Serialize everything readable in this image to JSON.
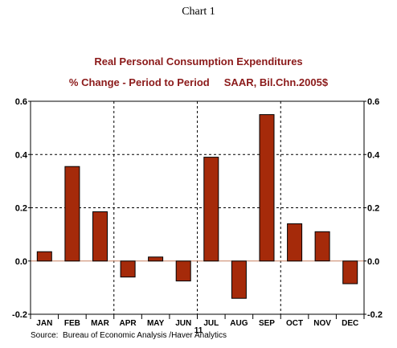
{
  "caption": "Chart 1",
  "source": "Source:  Bureau of Economic Analysis /Haver Analytics",
  "chart_data": {
    "type": "bar",
    "title": "Real Personal Consumption Expenditures",
    "subtitle": "% Change - Period to Period     SAAR, Bil.Chn.2005$",
    "categories": [
      "JAN",
      "FEB",
      "MAR",
      "APR",
      "MAY",
      "JUN",
      "JUL",
      "AUG",
      "SEP",
      "OCT",
      "NOV",
      "DEC"
    ],
    "x_group_label": "11",
    "values": [
      0.035,
      0.355,
      0.185,
      -0.06,
      0.015,
      -0.075,
      0.39,
      -0.14,
      0.55,
      0.14,
      0.11,
      -0.085
    ],
    "ylim": [
      -0.2,
      0.6
    ],
    "yticks": [
      "0.6",
      "0.4",
      "0.2",
      "0.0",
      "-0.2"
    ],
    "ytick_values": [
      0.6,
      0.4,
      0.2,
      0.0,
      -0.2
    ],
    "grid": true,
    "bar_color": "#a52a0a"
  }
}
